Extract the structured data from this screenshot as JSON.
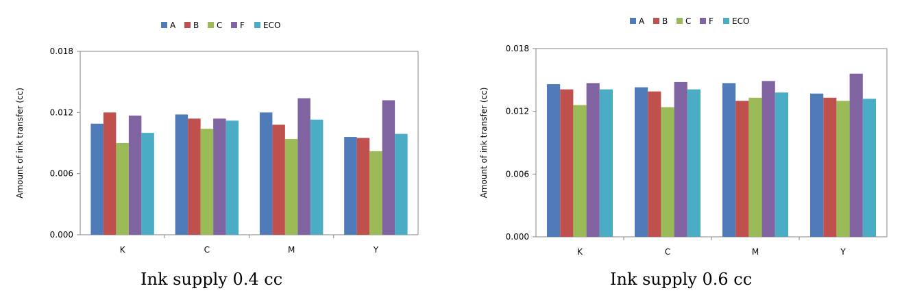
{
  "colors": {
    "A": "#4F7CB8",
    "B": "#C0504D",
    "C": "#9BBB59",
    "F": "#8064A2",
    "ECO": "#4BACC6",
    "axis": "#868686"
  },
  "chart_data": [
    {
      "type": "bar",
      "caption": "Ink supply 0.4 cc",
      "ylabel": "Amount of ink transfer (cc)",
      "ylim": [
        0,
        0.018
      ],
      "yticks": [
        "0.000",
        "0.006",
        "0.012",
        "0.018"
      ],
      "legend_position": "top",
      "categories": [
        "K",
        "C",
        "M",
        "Y"
      ],
      "series": [
        {
          "name": "A",
          "values": [
            0.0109,
            0.0118,
            0.012,
            0.0096
          ]
        },
        {
          "name": "B",
          "values": [
            0.012,
            0.0114,
            0.0108,
            0.0095
          ]
        },
        {
          "name": "C",
          "values": [
            0.009,
            0.0104,
            0.0094,
            0.0082
          ]
        },
        {
          "name": "F",
          "values": [
            0.0117,
            0.0114,
            0.0134,
            0.0132
          ]
        },
        {
          "name": "ECO",
          "values": [
            0.01,
            0.0112,
            0.0113,
            0.0099
          ]
        }
      ]
    },
    {
      "type": "bar",
      "caption": "Ink supply 0.6 cc",
      "ylabel": "Amount of ink transfer (cc)",
      "ylim": [
        0,
        0.018
      ],
      "yticks": [
        "0.000",
        "0.006",
        "0.012",
        "0.018"
      ],
      "legend_position": "top",
      "categories": [
        "K",
        "C",
        "M",
        "Y"
      ],
      "series": [
        {
          "name": "A",
          "values": [
            0.0146,
            0.0143,
            0.0147,
            0.0137
          ]
        },
        {
          "name": "B",
          "values": [
            0.0141,
            0.0139,
            0.013,
            0.0133
          ]
        },
        {
          "name": "C",
          "values": [
            0.0126,
            0.0124,
            0.0133,
            0.013
          ]
        },
        {
          "name": "F",
          "values": [
            0.0147,
            0.0148,
            0.0149,
            0.0156
          ]
        },
        {
          "name": "ECO",
          "values": [
            0.0141,
            0.0141,
            0.0138,
            0.0132
          ]
        }
      ]
    }
  ]
}
